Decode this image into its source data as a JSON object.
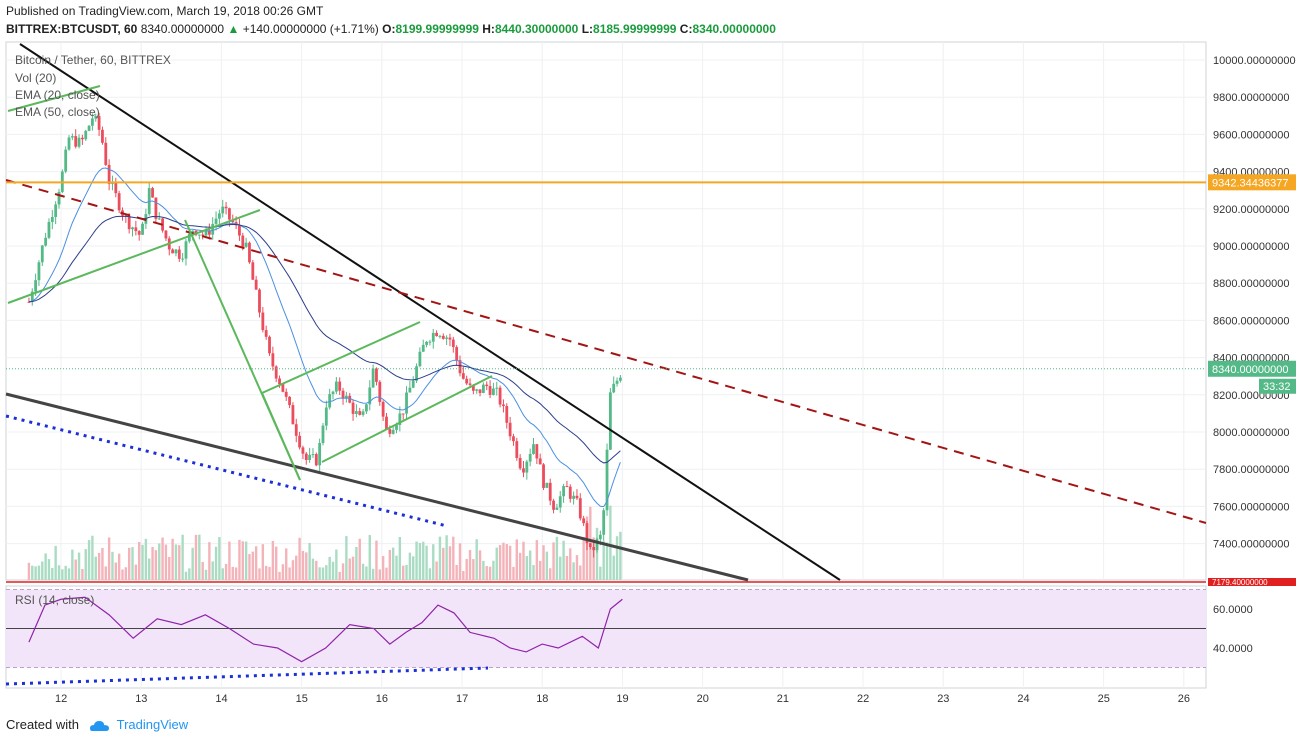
{
  "header": {
    "published": "Published on TradingView.com, March 19, 2018 00:26 GMT",
    "symbol": "BITTREX:BTCUSDT, 60",
    "last": "8340.00000000",
    "change": "+140.00000000 (+1.71%)",
    "open_label": "O:",
    "open": "8199.99999999",
    "high_label": "H:",
    "high": "8440.30000000",
    "low_label": "L:",
    "low": "8185.99999999",
    "close_label": "C:",
    "close": "8340.00000000"
  },
  "legend": {
    "title": "Bitcoin / Tether, 60, BITTREX",
    "vol": "Vol (20)",
    "ema20": "EMA (20, close)",
    "ema50": "EMA (50, close)",
    "rsi": "RSI (14, close)"
  },
  "footer": {
    "created": "Created with",
    "brand": "TradingView"
  },
  "colors": {
    "up": "#53b987",
    "down": "#eb4d5c",
    "ema20": "#4a90e2",
    "ema50": "#2c3e8c",
    "orange": "#f5a623",
    "rsi_fill": "#f3e5f9",
    "rsi_line": "#8e24aa",
    "green_line": "#5cb85c"
  },
  "chart_data": {
    "type": "candlestick",
    "price_axis": {
      "ticks": [
        "10000.00000000",
        "9800.00000000",
        "9600.00000000",
        "9400.00000000",
        "9200.00000000",
        "9000.00000000",
        "8800.00000000",
        "8600.00000000",
        "8400.00000000",
        "8200.00000000",
        "8000.00000000",
        "7800.00000000",
        "7600.00000000",
        "7400.00000000"
      ],
      "tick_values": [
        10000,
        9800,
        9600,
        9400,
        9200,
        9000,
        8800,
        8600,
        8400,
        8200,
        8000,
        7800,
        7600,
        7400
      ]
    },
    "date_axis": {
      "labels": [
        "12",
        "13",
        "14",
        "15",
        "16",
        "17",
        "18",
        "19",
        "20",
        "21",
        "22",
        "23",
        "24",
        "25",
        "26"
      ]
    },
    "markers": {
      "horizontal_level": {
        "label": "9342.34436377",
        "value": 9342.34
      },
      "current_price": {
        "label": "8340.00000000",
        "value": 8340
      },
      "countdown": "33:32",
      "low_level": {
        "label": "7179.40000000",
        "value": 7179.4
      }
    },
    "rsi_axis": {
      "ticks": [
        "60.0000",
        "40.0000"
      ],
      "tick_values": [
        60,
        40
      ]
    },
    "close_path": [
      [
        11.6,
        8700
      ],
      [
        11.8,
        9050
      ],
      [
        12.0,
        9350
      ],
      [
        12.1,
        9580
      ],
      [
        12.25,
        9550
      ],
      [
        12.4,
        9700
      ],
      [
        12.5,
        9600
      ],
      [
        12.6,
        9350
      ],
      [
        12.8,
        9150
      ],
      [
        13.0,
        9050
      ],
      [
        13.1,
        9300
      ],
      [
        13.2,
        9150
      ],
      [
        13.35,
        9000
      ],
      [
        13.5,
        8950
      ],
      [
        13.65,
        9100
      ],
      [
        13.8,
        9050
      ],
      [
        14.0,
        9200
      ],
      [
        14.15,
        9120
      ],
      [
        14.3,
        9000
      ],
      [
        14.45,
        8700
      ],
      [
        14.6,
        8400
      ],
      [
        14.75,
        8250
      ],
      [
        14.9,
        8050
      ],
      [
        15.05,
        7850
      ],
      [
        15.2,
        7850
      ],
      [
        15.3,
        8150
      ],
      [
        15.45,
        8250
      ],
      [
        15.6,
        8150
      ],
      [
        15.75,
        8050
      ],
      [
        15.9,
        8350
      ],
      [
        16.05,
        8000
      ],
      [
        16.25,
        8100
      ],
      [
        16.4,
        8300
      ],
      [
        16.55,
        8500
      ],
      [
        16.7,
        8550
      ],
      [
        16.85,
        8500
      ],
      [
        17.0,
        8300
      ],
      [
        17.15,
        8200
      ],
      [
        17.3,
        8250
      ],
      [
        17.45,
        8200
      ],
      [
        17.6,
        8000
      ],
      [
        17.75,
        7800
      ],
      [
        17.9,
        7950
      ],
      [
        18.0,
        7750
      ],
      [
        18.15,
        7600
      ],
      [
        18.3,
        7700
      ],
      [
        18.45,
        7600
      ],
      [
        18.6,
        7350
      ],
      [
        18.75,
        7450
      ],
      [
        18.85,
        8200
      ],
      [
        19.0,
        8340
      ]
    ],
    "rsi_path": [
      [
        11.6,
        43
      ],
      [
        11.8,
        62
      ],
      [
        12.0,
        65
      ],
      [
        12.3,
        66
      ],
      [
        12.6,
        57
      ],
      [
        12.9,
        45
      ],
      [
        13.2,
        55
      ],
      [
        13.5,
        52
      ],
      [
        13.8,
        57
      ],
      [
        14.1,
        50
      ],
      [
        14.4,
        42
      ],
      [
        14.7,
        40
      ],
      [
        15.0,
        33
      ],
      [
        15.3,
        40
      ],
      [
        15.6,
        52
      ],
      [
        15.9,
        50
      ],
      [
        16.1,
        42
      ],
      [
        16.3,
        48
      ],
      [
        16.5,
        53
      ],
      [
        16.7,
        62
      ],
      [
        16.9,
        58
      ],
      [
        17.1,
        48
      ],
      [
        17.4,
        45
      ],
      [
        17.6,
        40
      ],
      [
        17.8,
        38
      ],
      [
        18.0,
        42
      ],
      [
        18.2,
        40
      ],
      [
        18.5,
        46
      ],
      [
        18.7,
        40
      ],
      [
        18.85,
        60
      ],
      [
        19.0,
        65
      ]
    ]
  }
}
